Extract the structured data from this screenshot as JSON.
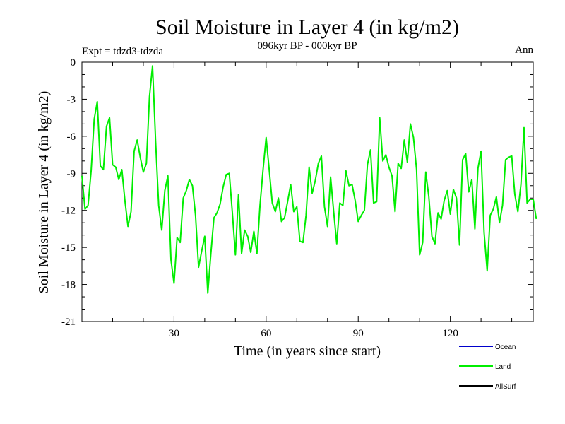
{
  "chart_data": {
    "type": "line",
    "title": "Soil Moisture in Layer 4 (in kg/m2)",
    "subtitle": "096kyr BP - 000kyr BP",
    "left_note": "Expt = tdzd3-tdzda",
    "right_note": "Ann",
    "xlabel": "Time (in years since start)",
    "ylabel": "Soil Moisture in Layer 4 (in kg/m2)",
    "xlim": [
      0,
      147
    ],
    "ylim": [
      -21,
      0
    ],
    "x_ticks": [
      30,
      60,
      90,
      120
    ],
    "x_tick_labels": [
      "30",
      "60",
      "90",
      "120"
    ],
    "y_ticks": [
      0,
      -3,
      -6,
      -9,
      -12,
      -15,
      -18,
      -21
    ],
    "y_tick_labels": [
      "0",
      "-3",
      "-6",
      "-9",
      "-12",
      "-15",
      "-18",
      "-21"
    ],
    "legend": [
      {
        "label": "Ocean",
        "color": "#0000cc"
      },
      {
        "label": "Land",
        "color": "#00ee00"
      },
      {
        "label": "AllSurf",
        "color": "#000000"
      }
    ],
    "series": [
      {
        "name": "Land",
        "color": "#00ee00",
        "values": [
          -9.2,
          -11.9,
          -11.6,
          -8.8,
          -4.6,
          -3.2,
          -8.4,
          -8.7,
          -5.2,
          -4.5,
          -8.3,
          -8.5,
          -9.5,
          -8.7,
          -11.2,
          -13.3,
          -12.1,
          -7.2,
          -6.3,
          -7.7,
          -8.9,
          -8.2,
          -2.8,
          -0.3,
          -6.4,
          -11.6,
          -13.6,
          -10.4,
          -9.2,
          -16,
          -17.9,
          -14.2,
          -14.6,
          -11,
          -10.4,
          -9.5,
          -10,
          -12.4,
          -16.6,
          -15.3,
          -14.1,
          -18.7,
          -15.5,
          -12.6,
          -12.2,
          -11.5,
          -10.1,
          -9.1,
          -9,
          -12.2,
          -15.6,
          -10.7,
          -15.5,
          -13.6,
          -14.1,
          -15.4,
          -13.7,
          -15.5,
          -11.6,
          -8.7,
          -6.1,
          -8.7,
          -11.4,
          -12.1,
          -11,
          -12.9,
          -12.6,
          -11.3,
          -9.9,
          -12.1,
          -11.7,
          -14.5,
          -14.6,
          -12.4,
          -8.5,
          -10.6,
          -9.6,
          -8.2,
          -7.6,
          -11.7,
          -13.3,
          -9.3,
          -12.1,
          -14.7,
          -11.4,
          -11.6,
          -8.8,
          -10,
          -9.9,
          -11.2,
          -12.9,
          -12.4,
          -12,
          -8.3,
          -7.1,
          -11.4,
          -11.3,
          -4.5,
          -8,
          -7.5,
          -8.5,
          -9.2,
          -12.1,
          -8.2,
          -8.6,
          -6.3,
          -8.1,
          -5,
          -6.1,
          -8.7,
          -15.6,
          -14.6,
          -8.9,
          -10.9,
          -14.1,
          -14.7,
          -12.2,
          -12.7,
          -11.2,
          -10.4,
          -12.3,
          -10.3,
          -11,
          -14.8,
          -7.9,
          -7.4,
          -10.5,
          -9.5,
          -13.5,
          -8.6,
          -7.2,
          -13.8,
          -16.9,
          -12.4,
          -11.9,
          -10.9,
          -13,
          -11.6,
          -7.9,
          -7.7,
          -7.6,
          -10.7,
          -12.1,
          -9.9,
          -5.3,
          -11.4,
          -11.1,
          -11.1,
          -12.7
        ]
      }
    ]
  }
}
